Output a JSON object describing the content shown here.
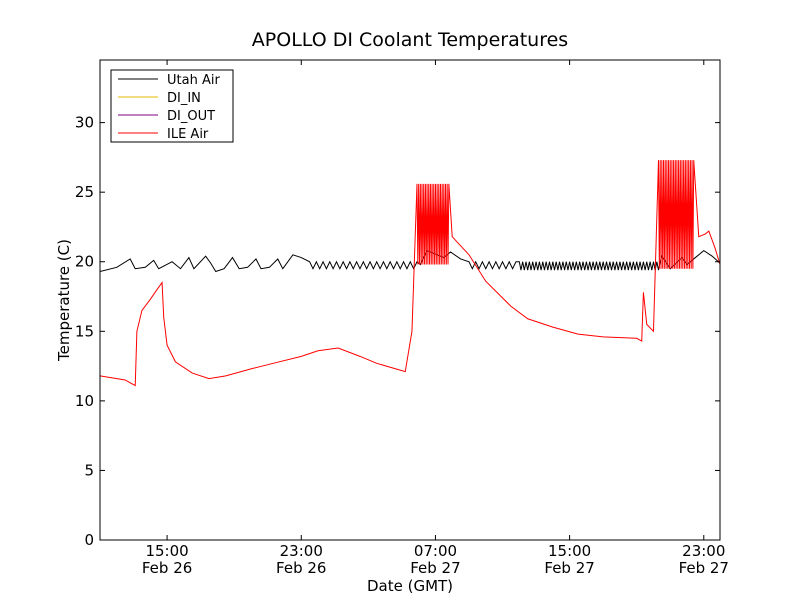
{
  "chart_data": {
    "type": "line",
    "title": "APOLLO DI Coolant Temperatures",
    "xlabel": "Date (GMT)",
    "ylabel": "Temperature (C)",
    "ylim": [
      0,
      34.5
    ],
    "xlim": [
      "2015-02-26 11:00",
      "2015-02-27 23:58"
    ],
    "yticks": [
      0,
      5,
      10,
      15,
      20,
      25,
      30
    ],
    "xticks": [
      {
        "at": "2015-02-26 15:00",
        "time": "15:00",
        "date": "Feb 26"
      },
      {
        "at": "2015-02-26 23:00",
        "time": "23:00",
        "date": "Feb 26"
      },
      {
        "at": "2015-02-27 07:00",
        "time": "07:00",
        "date": "Feb 27"
      },
      {
        "at": "2015-02-27 15:00",
        "time": "15:00",
        "date": "Feb 27"
      },
      {
        "at": "2015-02-27 23:00",
        "time": "23:00",
        "date": "Feb 27"
      }
    ],
    "grid": false,
    "legend_position": "top-left",
    "series": [
      {
        "name": "Utah Air",
        "color": "#000000",
        "points": [
          [
            "2015-02-26 11:00",
            19.3
          ],
          [
            "2015-02-26 12:00",
            19.6
          ],
          [
            "2015-02-26 12:48",
            20.2
          ],
          [
            "2015-02-26 13:06",
            19.5
          ],
          [
            "2015-02-26 13:42",
            19.6
          ],
          [
            "2015-02-26 14:12",
            20.1
          ],
          [
            "2015-02-26 14:30",
            19.5
          ],
          [
            "2015-02-26 15:18",
            20.0
          ],
          [
            "2015-02-26 15:48",
            19.5
          ],
          [
            "2015-02-26 16:18",
            20.3
          ],
          [
            "2015-02-26 16:36",
            19.5
          ],
          [
            "2015-02-26 17:18",
            20.4
          ],
          [
            "2015-02-26 17:36",
            19.9
          ],
          [
            "2015-02-26 17:54",
            19.3
          ],
          [
            "2015-02-26 18:24",
            19.5
          ],
          [
            "2015-02-26 18:54",
            20.3
          ],
          [
            "2015-02-26 19:18",
            19.5
          ],
          [
            "2015-02-26 19:48",
            19.6
          ],
          [
            "2015-02-26 20:18",
            20.2
          ],
          [
            "2015-02-26 20:36",
            19.5
          ],
          [
            "2015-02-26 21:06",
            19.6
          ],
          [
            "2015-02-26 21:36",
            20.2
          ],
          [
            "2015-02-26 21:54",
            19.5
          ],
          [
            "2015-02-26 22:30",
            20.5
          ],
          [
            "2015-02-26 23:00",
            20.3
          ],
          [
            "2015-02-26 23:42",
            19.9
          ],
          [
            "2015-02-27 00:12",
            19.5
          ],
          [
            "2015-02-27 06:06",
            19.8
          ],
          [
            "2015-02-27 06:30",
            20.8
          ],
          [
            "2015-02-27 07:30",
            20.3
          ],
          [
            "2015-02-27 07:54",
            20.7
          ],
          [
            "2015-02-27 08:30",
            20.2
          ],
          [
            "2015-02-27 09:06",
            19.5
          ],
          [
            "2015-02-27 20:24",
            19.5
          ],
          [
            "2015-02-27 20:30",
            20.4
          ],
          [
            "2015-02-27 21:00",
            19.5
          ],
          [
            "2015-02-27 21:42",
            20.3
          ],
          [
            "2015-02-27 22:00",
            19.8
          ],
          [
            "2015-02-27 22:30",
            20.3
          ],
          [
            "2015-02-27 23:00",
            20.8
          ],
          [
            "2015-02-27 23:30",
            20.4
          ],
          [
            "2015-02-27 23:58",
            19.9
          ]
        ],
        "oscillations": [
          {
            "from": "2015-02-26 23:30",
            "to": "2015-02-27 06:00",
            "period_min": 24,
            "low": 19.5,
            "high": 20.0
          },
          {
            "from": "2015-02-27 09:00",
            "to": "2015-02-27 12:00",
            "period_min": 24,
            "low": 19.5,
            "high": 20.0
          },
          {
            "from": "2015-02-27 12:00",
            "to": "2015-02-27 20:24",
            "period_min": 12,
            "low": 19.4,
            "high": 20.0
          }
        ]
      },
      {
        "name": "DI_IN",
        "color": "#e6b800",
        "points": []
      },
      {
        "name": "DI_OUT",
        "color": "#800080",
        "points": []
      },
      {
        "name": "ILE Air",
        "color": "#ff0000",
        "points": [
          [
            "2015-02-26 11:00",
            11.8
          ],
          [
            "2015-02-26 12:30",
            11.5
          ],
          [
            "2015-02-26 13:06",
            11.1
          ],
          [
            "2015-02-26 13:12",
            15.0
          ],
          [
            "2015-02-26 13:30",
            16.5
          ],
          [
            "2015-02-26 14:00",
            17.3
          ],
          [
            "2015-02-26 14:24",
            18.0
          ],
          [
            "2015-02-26 14:42",
            18.5
          ],
          [
            "2015-02-26 14:48",
            16.0
          ],
          [
            "2015-02-26 15:00",
            14.0
          ],
          [
            "2015-02-26 15:30",
            12.8
          ],
          [
            "2015-02-26 16:30",
            12.0
          ],
          [
            "2015-02-26 17:30",
            11.6
          ],
          [
            "2015-02-26 18:30",
            11.8
          ],
          [
            "2015-02-26 20:00",
            12.3
          ],
          [
            "2015-02-26 21:00",
            12.6
          ],
          [
            "2015-02-26 23:00",
            13.2
          ],
          [
            "2015-02-27 00:00",
            13.6
          ],
          [
            "2015-02-27 01:12",
            13.8
          ],
          [
            "2015-02-27 02:30",
            13.2
          ],
          [
            "2015-02-27 03:30",
            12.7
          ],
          [
            "2015-02-27 05:12",
            12.1
          ],
          [
            "2015-02-27 05:36",
            15.0
          ],
          [
            "2015-02-27 05:54",
            20.5
          ],
          [
            "2015-02-27 06:06",
            21.5
          ],
          [
            "2015-02-27 08:00",
            21.8
          ],
          [
            "2015-02-27 09:00",
            20.5
          ],
          [
            "2015-02-27 10:00",
            18.6
          ],
          [
            "2015-02-27 11:30",
            16.8
          ],
          [
            "2015-02-27 12:30",
            15.9
          ],
          [
            "2015-02-27 14:00",
            15.3
          ],
          [
            "2015-02-27 15:30",
            14.8
          ],
          [
            "2015-02-27 17:00",
            14.6
          ],
          [
            "2015-02-27 19:00",
            14.5
          ],
          [
            "2015-02-27 19:18",
            14.3
          ],
          [
            "2015-02-27 19:24",
            17.8
          ],
          [
            "2015-02-27 19:36",
            15.5
          ],
          [
            "2015-02-27 20:00",
            15.0
          ],
          [
            "2015-02-27 20:18",
            16.0
          ],
          [
            "2015-02-27 20:24",
            20.0
          ],
          [
            "2015-02-27 22:24",
            20.0
          ],
          [
            "2015-02-27 22:42",
            21.8
          ],
          [
            "2015-02-27 23:06",
            22.0
          ],
          [
            "2015-02-27 23:18",
            22.2
          ],
          [
            "2015-02-27 23:40",
            21.0
          ],
          [
            "2015-02-27 23:58",
            19.8
          ]
        ],
        "oscillations": [
          {
            "from": "2015-02-27 05:54",
            "to": "2015-02-27 07:48",
            "period_min": 6,
            "low": 19.8,
            "high": 25.6
          },
          {
            "from": "2015-02-27 20:18",
            "to": "2015-02-27 22:24",
            "period_min": 6,
            "low": 19.5,
            "high": 27.3
          }
        ]
      }
    ]
  }
}
